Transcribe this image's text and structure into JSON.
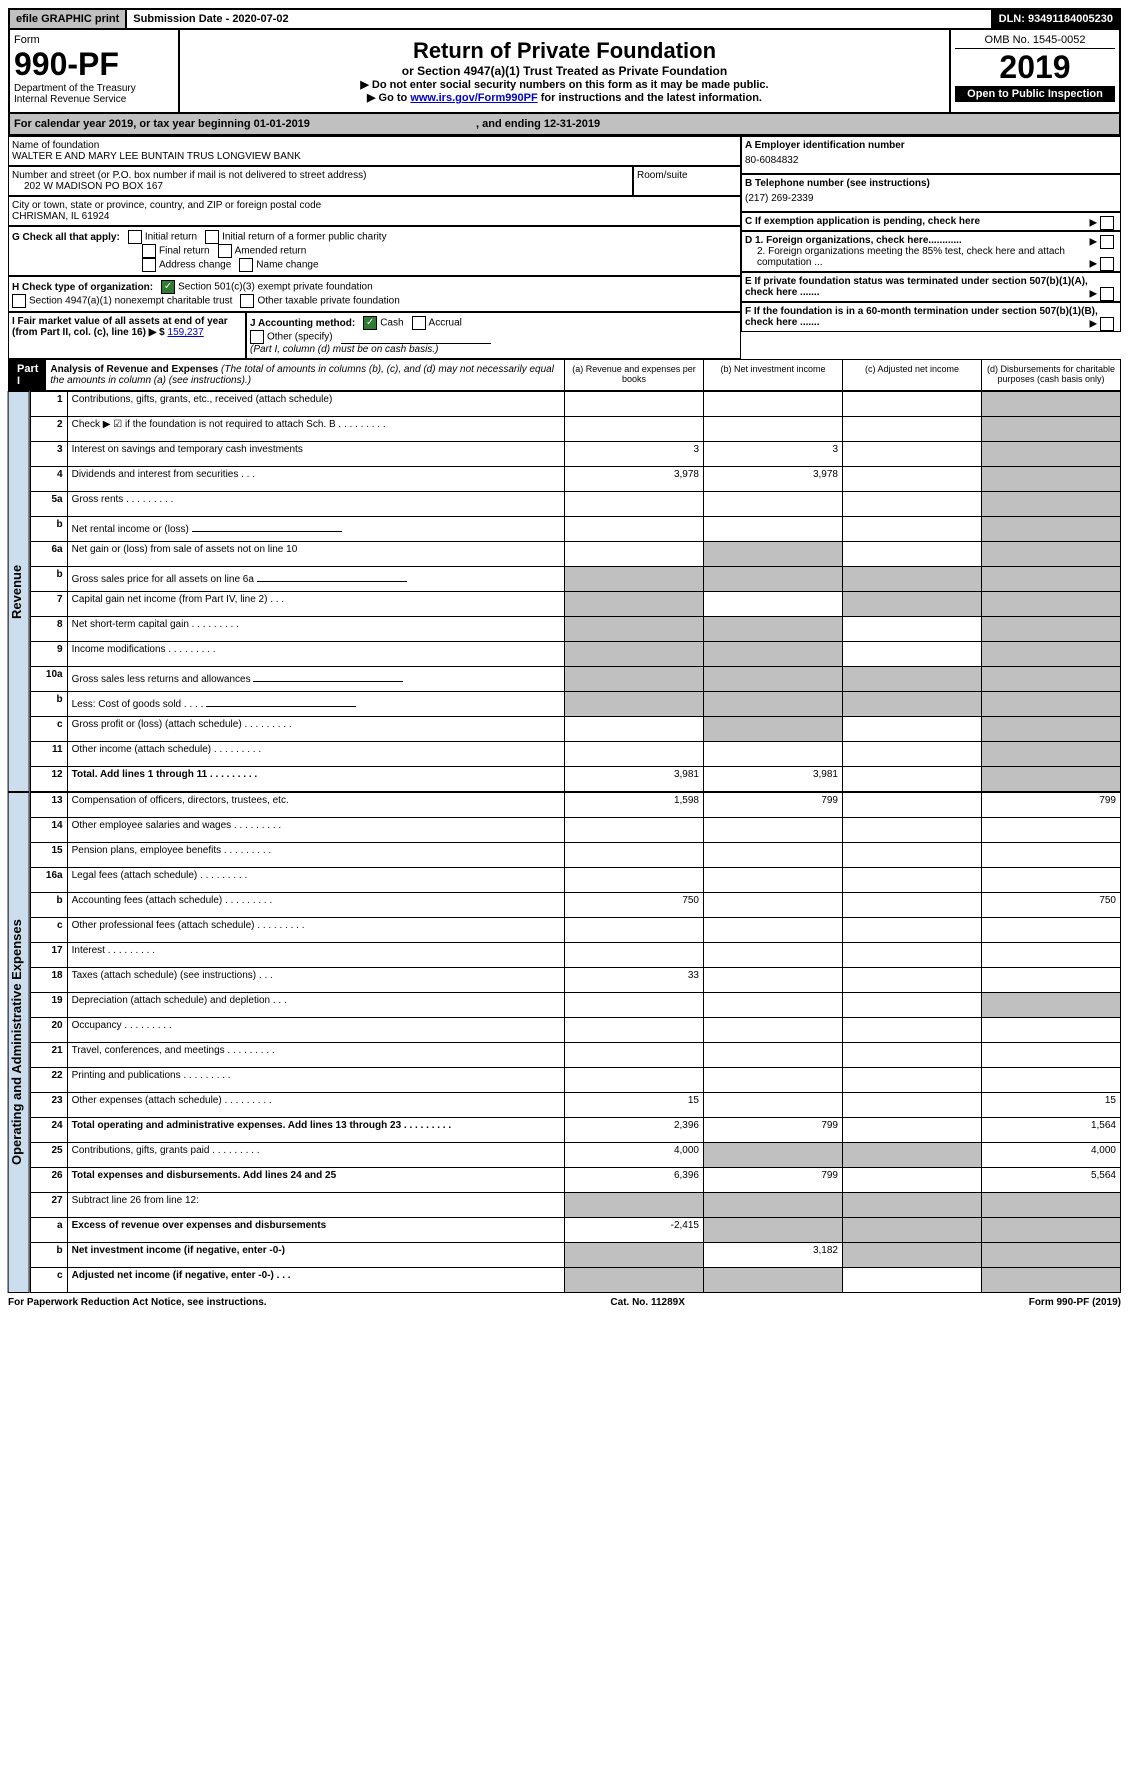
{
  "top": {
    "efile": "efile GRAPHIC print",
    "submission": "Submission Date - 2020-07-02",
    "dln": "DLN: 93491184005230"
  },
  "header": {
    "formLabel": "Form",
    "formNumber": "990-PF",
    "dept1": "Department of the Treasury",
    "dept2": "Internal Revenue Service",
    "title": "Return of Private Foundation",
    "subtitle": "or Section 4947(a)(1) Trust Treated as Private Foundation",
    "instruct1": "▶ Do not enter social security numbers on this form as it may be made public.",
    "instruct2": "▶ Go to",
    "instructLink": "www.irs.gov/Form990PF",
    "instruct3": "for instructions and the latest information.",
    "omb": "OMB No. 1545-0052",
    "year": "2019",
    "openPublic": "Open to Public Inspection"
  },
  "calendar": {
    "text1": "For calendar year 2019, or tax year beginning 01-01-2019",
    "text2": ", and ending 12-31-2019"
  },
  "foundation": {
    "nameLabel": "Name of foundation",
    "name": "WALTER E AND MARY LEE BUNTAIN TRUS LONGVIEW BANK",
    "addrLabel": "Number and street (or P.O. box number if mail is not delivered to street address)",
    "addr": "202 W MADISON PO BOX 167",
    "roomLabel": "Room/suite",
    "cityLabel": "City or town, state or province, country, and ZIP or foreign postal code",
    "city": "CHRISMAN, IL  61924",
    "einLabel": "A Employer identification number",
    "ein": "80-6084832",
    "phoneLabel": "B Telephone number (see instructions)",
    "phone": "(217) 269-2339",
    "cLabel": "C If exemption application is pending, check here",
    "d1": "D 1. Foreign organizations, check here............",
    "d2": "2. Foreign organizations meeting the 85% test, check here and attach computation ...",
    "eLabel": "E  If private foundation status was terminated under section 507(b)(1)(A), check here .......",
    "fLabel": "F  If the foundation is in a 60-month termination under section 507(b)(1)(B), check here .......",
    "gLabel": "G Check all that apply:",
    "gOpts": [
      "Initial return",
      "Initial return of a former public charity",
      "Final return",
      "Amended return",
      "Address change",
      "Name change"
    ],
    "hLabel": "H Check type of organization:",
    "hOpts": [
      "Section 501(c)(3) exempt private foundation",
      "Section 4947(a)(1) nonexempt charitable trust",
      "Other taxable private foundation"
    ],
    "iLabel": "I Fair market value of all assets at end of year (from Part II, col. (c), line 16) ▶ $",
    "iValue": "159,237",
    "jLabel": "J Accounting method:",
    "jOpts": [
      "Cash",
      "Accrual"
    ],
    "jOther": "Other (specify)",
    "jNote": "(Part I, column (d) must be on cash basis.)"
  },
  "part1": {
    "label": "Part I",
    "title": "Analysis of Revenue and Expenses",
    "titleNote": "(The total of amounts in columns (b), (c), and (d) may not necessarily equal the amounts in column (a) (see instructions).)",
    "colHeads": [
      "(a)    Revenue and expenses per books",
      "(b)   Net investment income",
      "(c)   Adjusted net income",
      "(d)   Disbursements for charitable purposes (cash basis only)"
    ]
  },
  "sideLabels": {
    "revenue": "Revenue",
    "expenses": "Operating and Administrative Expenses"
  },
  "rows": [
    {
      "n": "1",
      "d": "Contributions, gifts, grants, etc., received (attach schedule)",
      "a": "",
      "b": "",
      "c": "",
      "dcol": "",
      "shadeD": true
    },
    {
      "n": "2",
      "d": "Check ▶ ☑ if the foundation is not required to attach Sch. B",
      "dots": true,
      "a": "",
      "b": "",
      "c": "",
      "dcol": "",
      "shadeD": true,
      "bold": [
        "not"
      ]
    },
    {
      "n": "3",
      "d": "Interest on savings and temporary cash investments",
      "a": "3",
      "b": "3",
      "c": "",
      "dcol": "",
      "shadeD": true
    },
    {
      "n": "4",
      "d": "Dividends and interest from securities    .   .   .",
      "a": "3,978",
      "b": "3,978",
      "c": "",
      "dcol": "",
      "shadeD": true
    },
    {
      "n": "5a",
      "d": "Gross rents",
      "dots": true,
      "a": "",
      "b": "",
      "c": "",
      "dcol": "",
      "shadeD": true
    },
    {
      "n": "b",
      "d": "Net rental income or (loss)",
      "input": true,
      "a": "",
      "b": "",
      "c": "",
      "dcol": "",
      "shadeD": true,
      "shadeA": false
    },
    {
      "n": "6a",
      "d": "Net gain or (loss) from sale of assets not on line 10",
      "a": "",
      "b": "",
      "c": "",
      "dcol": "",
      "shadeD": true,
      "shadeB": true
    },
    {
      "n": "b",
      "d": "Gross sales price for all assets on line 6a",
      "input": true,
      "shadeA": true,
      "shadeB": true,
      "shadeC": true,
      "shadeD": true
    },
    {
      "n": "7",
      "d": "Capital gain net income (from Part IV, line 2)    .   .   .",
      "shadeA": true,
      "b": "",
      "shadeC": true,
      "shadeD": true
    },
    {
      "n": "8",
      "d": "Net short-term capital gain",
      "dots": true,
      "shadeA": true,
      "shadeB": true,
      "c": "",
      "shadeD": true
    },
    {
      "n": "9",
      "d": "Income modifications",
      "dots": true,
      "shadeA": true,
      "shadeB": true,
      "c": "",
      "shadeD": true
    },
    {
      "n": "10a",
      "d": "Gross sales less returns and allowances",
      "input": true,
      "shadeA": true,
      "shadeB": true,
      "shadeC": true,
      "shadeD": true
    },
    {
      "n": "b",
      "d": "Less: Cost of goods sold     .   .   .   .",
      "input": true,
      "shadeA": true,
      "shadeB": true,
      "shadeC": true,
      "shadeD": true
    },
    {
      "n": "c",
      "d": "Gross profit or (loss) (attach schedule)",
      "dots": true,
      "a": "",
      "shadeB": true,
      "c": "",
      "shadeD": true
    },
    {
      "n": "11",
      "d": "Other income (attach schedule)",
      "dots": true,
      "a": "",
      "b": "",
      "c": "",
      "shadeD": true
    },
    {
      "n": "12",
      "d": "Total. Add lines 1 through 11",
      "dots": true,
      "boldD": true,
      "a": "3,981",
      "b": "3,981",
      "c": "",
      "shadeD": true
    }
  ],
  "expRows": [
    {
      "n": "13",
      "d": "Compensation of officers, directors, trustees, etc.",
      "a": "1,598",
      "b": "799",
      "c": "",
      "dcol": "799"
    },
    {
      "n": "14",
      "d": "Other employee salaries and wages",
      "dots": true,
      "a": "",
      "b": "",
      "c": "",
      "dcol": ""
    },
    {
      "n": "15",
      "d": "Pension plans, employee benefits",
      "dots": true,
      "a": "",
      "b": "",
      "c": "",
      "dcol": ""
    },
    {
      "n": "16a",
      "d": "Legal fees (attach schedule)",
      "dots": true,
      "a": "",
      "b": "",
      "c": "",
      "dcol": ""
    },
    {
      "n": "b",
      "d": "Accounting fees (attach schedule)",
      "dots": true,
      "a": "750",
      "b": "",
      "c": "",
      "dcol": "750"
    },
    {
      "n": "c",
      "d": "Other professional fees (attach schedule)",
      "dots": true,
      "a": "",
      "b": "",
      "c": "",
      "dcol": ""
    },
    {
      "n": "17",
      "d": "Interest",
      "dots": true,
      "a": "",
      "b": "",
      "c": "",
      "dcol": ""
    },
    {
      "n": "18",
      "d": "Taxes (attach schedule) (see instructions)    .   .   .",
      "a": "33",
      "b": "",
      "c": "",
      "dcol": ""
    },
    {
      "n": "19",
      "d": "Depreciation (attach schedule) and depletion    .   .   .",
      "a": "",
      "b": "",
      "c": "",
      "shadeD": true
    },
    {
      "n": "20",
      "d": "Occupancy",
      "dots": true,
      "a": "",
      "b": "",
      "c": "",
      "dcol": ""
    },
    {
      "n": "21",
      "d": "Travel, conferences, and meetings",
      "dots": true,
      "a": "",
      "b": "",
      "c": "",
      "dcol": ""
    },
    {
      "n": "22",
      "d": "Printing and publications",
      "dots": true,
      "a": "",
      "b": "",
      "c": "",
      "dcol": ""
    },
    {
      "n": "23",
      "d": "Other expenses (attach schedule)",
      "dots": true,
      "a": "15",
      "b": "",
      "c": "",
      "dcol": "15"
    },
    {
      "n": "24",
      "d": "Total operating and administrative expenses. Add lines 13 through 23",
      "dots": true,
      "boldD": true,
      "a": "2,396",
      "b": "799",
      "c": "",
      "dcol": "1,564"
    },
    {
      "n": "25",
      "d": "Contributions, gifts, grants paid",
      "dots": true,
      "a": "4,000",
      "shadeB": true,
      "shadeC": true,
      "dcol": "4,000"
    },
    {
      "n": "26",
      "d": "Total expenses and disbursements. Add lines 24 and 25",
      "boldD": true,
      "a": "6,396",
      "b": "799",
      "c": "",
      "dcol": "5,564"
    },
    {
      "n": "27",
      "d": "Subtract line 26 from line 12:",
      "shadeA": true,
      "shadeB": true,
      "shadeC": true,
      "shadeD": true
    },
    {
      "n": "a",
      "d": "Excess of revenue over expenses and disbursements",
      "boldD": true,
      "a": "-2,415",
      "shadeB": true,
      "shadeC": true,
      "shadeD": true
    },
    {
      "n": "b",
      "d": "Net investment income (if negative, enter -0-)",
      "boldD": true,
      "shadeA": true,
      "b": "3,182",
      "shadeC": true,
      "shadeD": true
    },
    {
      "n": "c",
      "d": "Adjusted net income (if negative, enter -0-)    .   .   .",
      "boldD": true,
      "shadeA": true,
      "shadeB": true,
      "c": "",
      "shadeD": true
    }
  ],
  "footer": {
    "left": "For Paperwork Reduction Act Notice, see instructions.",
    "center": "Cat. No. 11289X",
    "right": "Form 990-PF (2019)"
  }
}
